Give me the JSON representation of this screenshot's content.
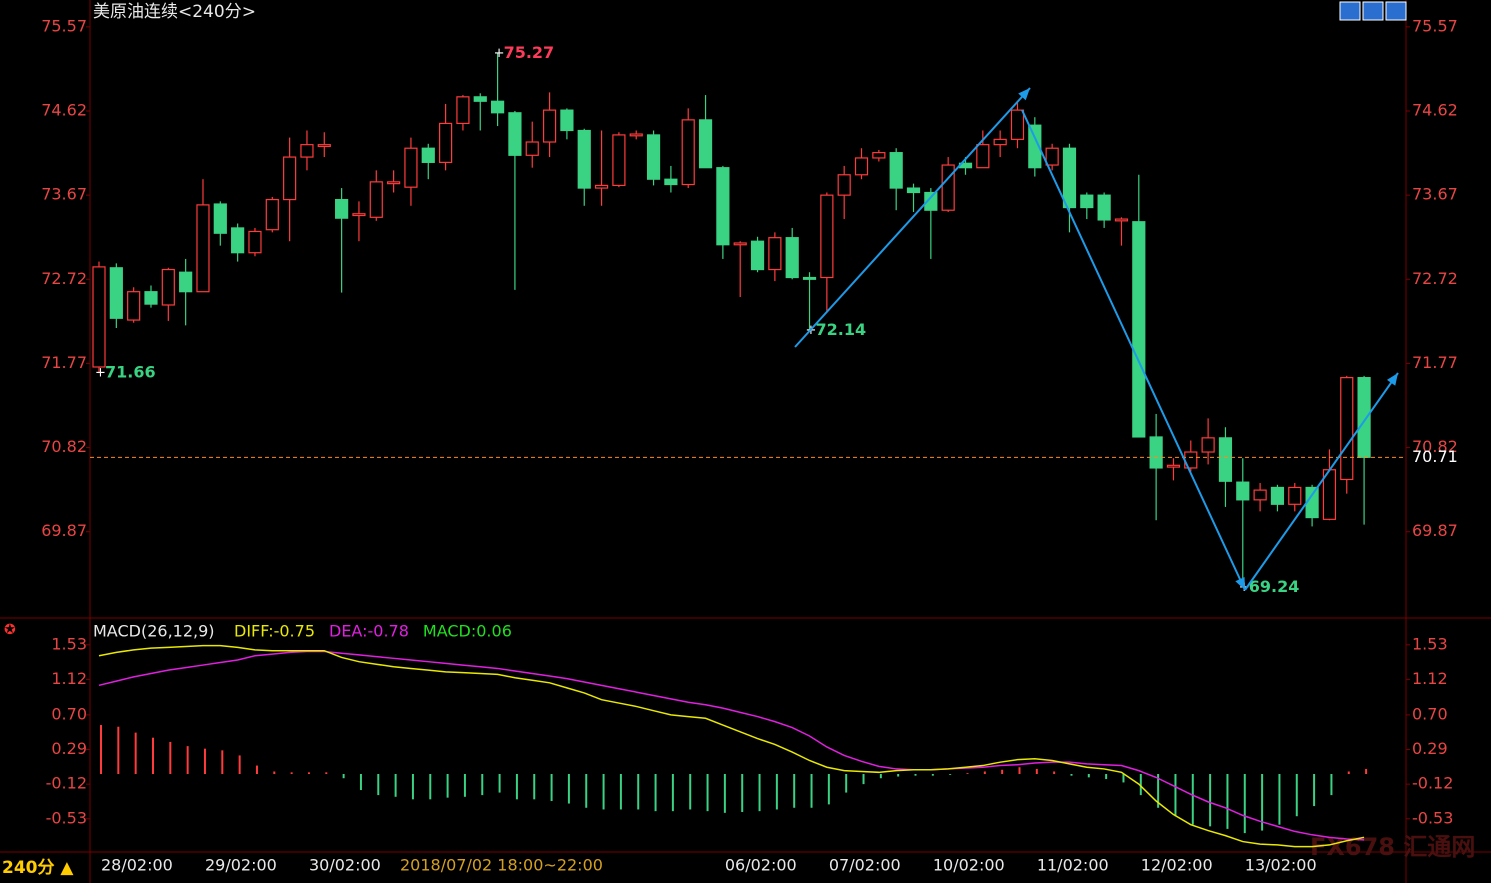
{
  "chart_data": [
    {
      "type": "candlestick",
      "title": "美原油连续<240分>",
      "categories": [
        "28/02:00",
        null,
        null,
        null,
        null,
        null,
        "29/02:00",
        null,
        null,
        null,
        null,
        null,
        "30/02:00",
        null,
        null,
        null,
        null,
        null,
        null,
        null,
        null,
        null,
        null,
        null,
        null,
        null,
        null,
        null,
        null,
        null,
        null,
        null,
        null,
        null,
        null,
        null,
        "06/02:00",
        null,
        null,
        null,
        null,
        null,
        "07/02:00",
        null,
        null,
        null,
        null,
        null,
        "10/02:00",
        null,
        null,
        null,
        null,
        null,
        "11/02:00",
        null,
        null,
        null,
        null,
        null,
        "12/02:00",
        null,
        null,
        null,
        null,
        null,
        "13/02:00",
        null,
        null,
        null,
        null,
        null,
        null,
        null
      ],
      "open": [
        71.73,
        72.85,
        72.26,
        72.58,
        72.43,
        72.8,
        72.58,
        73.57,
        73.3,
        73.02,
        73.28,
        73.62,
        74.1,
        74.22,
        73.62,
        73.44,
        73.42,
        73.8,
        73.76,
        74.2,
        74.04,
        74.48,
        74.78,
        74.73,
        74.6,
        74.12,
        74.27,
        74.63,
        74.4,
        73.75,
        73.78,
        74.34,
        74.35,
        73.85,
        73.79,
        74.52,
        73.98,
        73.11,
        73.15,
        72.83,
        73.19,
        72.74,
        72.74,
        73.67,
        73.9,
        74.09,
        74.15,
        73.75,
        73.7,
        73.5,
        74.03,
        73.98,
        74.24,
        74.3,
        74.46,
        74.01,
        74.2,
        73.67,
        73.67,
        73.38,
        73.37,
        70.94,
        70.6,
        70.59,
        70.77,
        70.93,
        70.43,
        70.23,
        70.37,
        70.18,
        70.37,
        70.01,
        70.46,
        71.61
      ],
      "high": [
        72.92,
        72.9,
        72.63,
        72.65,
        72.85,
        72.95,
        73.85,
        73.6,
        73.35,
        73.3,
        73.65,
        74.32,
        74.4,
        74.38,
        73.75,
        73.6,
        73.95,
        73.95,
        74.32,
        74.25,
        74.7,
        74.8,
        74.82,
        75.27,
        74.62,
        74.5,
        74.83,
        74.65,
        74.42,
        74.4,
        74.38,
        74.4,
        74.4,
        74.0,
        74.65,
        74.8,
        74.0,
        73.15,
        73.2,
        73.25,
        73.3,
        72.8,
        73.7,
        74.0,
        74.2,
        74.18,
        74.2,
        73.8,
        73.75,
        74.1,
        74.1,
        74.4,
        74.4,
        74.72,
        74.55,
        74.25,
        74.25,
        73.7,
        73.7,
        73.42,
        73.9,
        71.2,
        70.7,
        70.9,
        71.15,
        71.05,
        70.7,
        70.42,
        70.4,
        70.42,
        70.4,
        70.8,
        71.63,
        71.63
      ],
      "low": [
        71.66,
        72.17,
        72.23,
        72.4,
        72.25,
        72.2,
        72.58,
        73.1,
        72.92,
        72.98,
        73.25,
        73.15,
        73.95,
        74.1,
        72.57,
        73.15,
        73.38,
        73.7,
        73.55,
        73.85,
        73.95,
        74.4,
        74.4,
        74.45,
        72.6,
        73.98,
        74.1,
        74.3,
        73.55,
        73.55,
        73.76,
        74.3,
        73.78,
        73.7,
        73.75,
        73.98,
        72.95,
        72.52,
        72.8,
        72.7,
        72.72,
        72.14,
        72.35,
        73.4,
        73.85,
        74.05,
        73.5,
        73.48,
        72.95,
        73.48,
        73.9,
        73.98,
        74.1,
        74.2,
        73.88,
        73.95,
        73.25,
        73.4,
        73.3,
        73.1,
        70.94,
        70.0,
        70.45,
        70.55,
        70.63,
        70.15,
        69.24,
        70.1,
        70.1,
        70.1,
        69.93,
        70.0,
        70.3,
        69.95
      ],
      "close": [
        72.86,
        72.28,
        72.58,
        72.44,
        72.83,
        72.58,
        73.56,
        73.24,
        73.02,
        73.26,
        73.62,
        74.1,
        74.24,
        74.24,
        73.41,
        73.46,
        73.82,
        73.82,
        74.2,
        74.04,
        74.48,
        74.78,
        74.73,
        74.6,
        74.12,
        74.27,
        74.63,
        74.4,
        73.75,
        73.78,
        74.35,
        74.36,
        73.85,
        73.79,
        74.52,
        73.98,
        73.11,
        73.13,
        72.83,
        73.19,
        72.74,
        72.72,
        73.67,
        73.9,
        74.09,
        74.15,
        73.75,
        73.7,
        73.5,
        74.01,
        73.98,
        74.24,
        74.3,
        74.63,
        73.98,
        74.2,
        73.53,
        73.53,
        73.39,
        73.4,
        70.94,
        70.59,
        70.62,
        70.77,
        70.93,
        70.44,
        70.23,
        70.34,
        70.18,
        70.37,
        70.03,
        70.57,
        71.61,
        70.71
      ],
      "up_color": "#ff3b3b",
      "down_color": "#3ad283",
      "ylim": [
        68.93,
        75.67
      ],
      "yticks": [
        75.57,
        74.62,
        73.67,
        72.72,
        71.77,
        70.82,
        69.87
      ],
      "annotations": [
        {
          "value": 75.27,
          "color": "#ff3b5c"
        },
        {
          "value": 72.14,
          "color": "#3ad283"
        },
        {
          "value": 71.66,
          "color": "#3ad283"
        },
        {
          "value": 69.24,
          "color": "#3ad283"
        }
      ],
      "overlay_text": "2018/07/02 18:00~22:00",
      "period_label": "240分 ▲",
      "watermark": "FX678 汇通网"
    },
    {
      "type": "macd",
      "title": "MACD(26,12,9)",
      "ylim": [
        -0.9,
        1.8
      ],
      "yticks": [
        1.53,
        1.12,
        {
          "value": 0.7,
          "label": "0.70"
        },
        0.29,
        -0.12,
        -0.53
      ],
      "series": [
        {
          "name": "DIFF:",
          "color": "#e8e800",
          "values": [
            1.4,
            1.44,
            1.47,
            1.49,
            1.5,
            1.51,
            1.52,
            1.52,
            1.5,
            1.47,
            1.46,
            1.46,
            1.46,
            1.46,
            1.38,
            1.33,
            1.3,
            1.27,
            1.25,
            1.23,
            1.21,
            1.2,
            1.19,
            1.18,
            1.14,
            1.11,
            1.08,
            1.02,
            0.96,
            0.88,
            0.84,
            0.8,
            0.75,
            0.7,
            0.68,
            0.66,
            0.58,
            0.5,
            0.42,
            0.35,
            0.26,
            0.16,
            0.08,
            0.04,
            0.03,
            0.02,
            0.04,
            0.05,
            0.05,
            0.06,
            0.08,
            0.1,
            0.14,
            0.17,
            0.18,
            0.16,
            0.12,
            0.08,
            0.06,
            0.02,
            -0.12,
            -0.32,
            -0.48,
            -0.6,
            -0.67,
            -0.73,
            -0.8,
            -0.83,
            -0.84,
            -0.86,
            -0.86,
            -0.84,
            -0.79,
            -0.75
          ]
        },
        {
          "name": "DEA:",
          "color": "#e020e0",
          "values": [
            1.05,
            1.1,
            1.15,
            1.19,
            1.23,
            1.26,
            1.29,
            1.32,
            1.35,
            1.4,
            1.42,
            1.44,
            1.45,
            1.45,
            1.43,
            1.41,
            1.39,
            1.37,
            1.35,
            1.33,
            1.31,
            1.29,
            1.27,
            1.25,
            1.22,
            1.19,
            1.16,
            1.13,
            1.09,
            1.05,
            1.01,
            0.97,
            0.93,
            0.89,
            0.85,
            0.82,
            0.78,
            0.73,
            0.68,
            0.62,
            0.55,
            0.45,
            0.32,
            0.22,
            0.15,
            0.09,
            0.06,
            0.05,
            0.05,
            0.06,
            0.07,
            0.08,
            0.1,
            0.11,
            0.13,
            0.14,
            0.14,
            0.12,
            0.11,
            0.1,
            0.04,
            -0.04,
            -0.14,
            -0.24,
            -0.33,
            -0.4,
            -0.49,
            -0.56,
            -0.62,
            -0.68,
            -0.72,
            -0.75,
            -0.77,
            -0.78
          ]
        },
        {
          "name": "MACD:",
          "color": "#20e020",
          "values": [
            0.58,
            0.56,
            0.49,
            0.43,
            0.38,
            0.33,
            0.3,
            0.28,
            0.22,
            0.1,
            0.03,
            0.02,
            0.02,
            0.02,
            -0.05,
            -0.19,
            -0.25,
            -0.27,
            -0.3,
            -0.3,
            -0.28,
            -0.27,
            -0.25,
            -0.22,
            -0.3,
            -0.3,
            -0.32,
            -0.35,
            -0.4,
            -0.42,
            -0.42,
            -0.42,
            -0.44,
            -0.44,
            -0.42,
            -0.44,
            -0.46,
            -0.45,
            -0.44,
            -0.42,
            -0.4,
            -0.4,
            -0.36,
            -0.22,
            -0.12,
            -0.05,
            -0.03,
            -0.02,
            -0.02,
            -0.01,
            0.01,
            0.03,
            0.05,
            0.08,
            0.06,
            0.03,
            -0.02,
            -0.04,
            -0.06,
            -0.1,
            -0.25,
            -0.4,
            -0.5,
            -0.6,
            -0.62,
            -0.65,
            -0.7,
            -0.67,
            -0.6,
            -0.5,
            -0.38,
            -0.25,
            0.03,
            0.06
          ]
        }
      ],
      "up_color": "#ff3b3b",
      "down_color": "#3ad283"
    }
  ]
}
